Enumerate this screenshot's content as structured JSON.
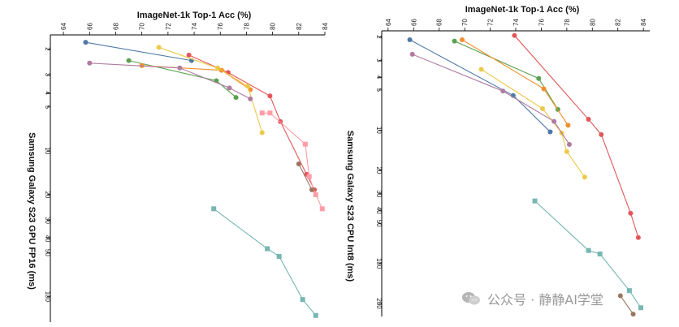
{
  "chart_data": [
    {
      "type": "scatter",
      "xlabel": "ImageNet-1k Top-1 Acc (%)",
      "ylabel": "Samsung Galaxy S23 GPU FP16 (ms)",
      "xlim": [
        63,
        84
      ],
      "ylim": [
        1.6,
        150
      ],
      "xscale": "linear",
      "yscale": "log",
      "y_inverted": true,
      "x_axis_position": "top",
      "xticks": [
        64,
        66,
        68,
        70,
        72,
        74,
        76,
        78,
        80,
        82,
        84
      ],
      "yticks": [
        2,
        3,
        4,
        5,
        10,
        20,
        30,
        40,
        50,
        100
      ],
      "series": [
        {
          "color": "#4e79a7",
          "marker": "circle",
          "points": [
            [
              65.7,
              1.8
            ],
            [
              73.8,
              2.4
            ]
          ]
        },
        {
          "color": "#76b7b2",
          "marker": "square",
          "points": [
            [
              75.5,
              25
            ],
            [
              79.6,
              47
            ],
            [
              80.5,
              53
            ],
            [
              82.3,
              105
            ],
            [
              83.3,
              135
            ]
          ]
        },
        {
          "color": "#e15759",
          "marker": "circle",
          "points": [
            [
              73.6,
              2.2
            ],
            [
              76.6,
              2.9
            ],
            [
              79.8,
              4.2
            ],
            [
              80.6,
              6.3
            ],
            [
              82.6,
              14.5
            ],
            [
              83.2,
              18.5
            ]
          ]
        },
        {
          "color": "#ff9da7",
          "marker": "square",
          "points": [
            [
              79.2,
              5.5
            ],
            [
              79.8,
              5.5
            ],
            [
              82.5,
              9.0
            ],
            [
              82.8,
              15
            ],
            [
              83.3,
              20
            ],
            [
              83.8,
              25
            ]
          ]
        },
        {
          "color": "#59a14f",
          "marker": "circle",
          "points": [
            [
              69.0,
              2.4
            ],
            [
              75.7,
              3.3
            ],
            [
              77.2,
              4.3
            ]
          ]
        },
        {
          "color": "#f28e2b",
          "marker": "circle",
          "points": [
            [
              70.0,
              2.6
            ],
            [
              76.1,
              2.8
            ],
            [
              78.3,
              3.8
            ]
          ]
        },
        {
          "color": "#edc948",
          "marker": "circle",
          "points": [
            [
              71.3,
              1.95
            ],
            [
              75.8,
              2.7
            ],
            [
              78.1,
              3.6
            ],
            [
              79.2,
              7.5
            ]
          ]
        },
        {
          "color": "#b07aa1",
          "marker": "circle",
          "points": [
            [
              66.0,
              2.5
            ],
            [
              72.9,
              2.7
            ],
            [
              76.7,
              3.7
            ],
            [
              78.3,
              4.4
            ]
          ]
        },
        {
          "color": "#9c755f",
          "marker": "circle",
          "points": [
            [
              82.0,
              12.3
            ],
            [
              83.0,
              18.5
            ]
          ]
        }
      ]
    },
    {
      "type": "scatter",
      "xlabel": "ImageNet-1k Top-1 Acc (%)",
      "ylabel": "Samsung Galaxy S23 CPU Int8 (ms)",
      "xlim": [
        63.5,
        84.5
      ],
      "ylim": [
        1.8,
        250
      ],
      "xscale": "linear",
      "yscale": "log",
      "y_inverted": true,
      "x_axis_position": "top",
      "xticks": [
        64,
        66,
        68,
        70,
        72,
        74,
        76,
        78,
        80,
        82,
        84
      ],
      "yticks": [
        2,
        3,
        4,
        5,
        10,
        20,
        30,
        40,
        50,
        100,
        200
      ],
      "series": [
        {
          "color": "#4e79a7",
          "marker": "circle",
          "points": [
            [
              65.7,
              2.1
            ],
            [
              73.8,
              5.5
            ],
            [
              76.7,
              10.3
            ]
          ]
        },
        {
          "color": "#76b7b2",
          "marker": "square",
          "points": [
            [
              75.5,
              34
            ],
            [
              79.7,
              80
            ],
            [
              80.6,
              85
            ],
            [
              82.9,
              160
            ],
            [
              83.8,
              215
            ]
          ]
        },
        {
          "color": "#e15759",
          "marker": "circle",
          "points": [
            [
              73.9,
              1.95
            ],
            [
              79.7,
              8.3
            ],
            [
              80.7,
              10.8
            ],
            [
              83.0,
              42
            ],
            [
              83.6,
              64
            ]
          ]
        },
        {
          "color": "#59a14f",
          "marker": "circle",
          "points": [
            [
              69.2,
              2.15
            ],
            [
              75.8,
              4.1
            ],
            [
              77.3,
              7.0
            ]
          ]
        },
        {
          "color": "#f28e2b",
          "marker": "circle",
          "points": [
            [
              69.8,
              2.1
            ],
            [
              76.2,
              4.9
            ],
            [
              78.1,
              9.2
            ]
          ]
        },
        {
          "color": "#edc948",
          "marker": "circle",
          "points": [
            [
              71.3,
              3.5
            ],
            [
              76.1,
              6.9
            ],
            [
              77.6,
              10.5
            ],
            [
              78.0,
              14.5
            ],
            [
              79.4,
              22.5
            ]
          ]
        },
        {
          "color": "#b07aa1",
          "marker": "circle",
          "points": [
            [
              65.9,
              2.7
            ],
            [
              73.0,
              5.1
            ],
            [
              77.0,
              8.6
            ],
            [
              78.2,
              12.8
            ]
          ]
        },
        {
          "color": "#9c755f",
          "marker": "circle",
          "points": [
            [
              82.2,
              175
            ],
            [
              83.2,
              240
            ]
          ]
        }
      ]
    }
  ],
  "watermark": {
    "text": "公众号 · 静静AI学堂",
    "icon": "wechat-icon"
  }
}
